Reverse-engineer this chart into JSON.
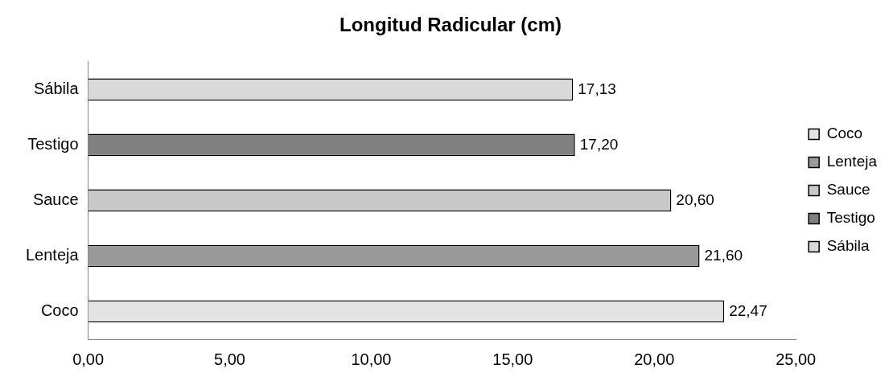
{
  "chart_data": {
    "type": "bar",
    "orientation": "horizontal",
    "title": "Longitud Radicular (cm)",
    "categories": [
      "Sábila",
      "Testigo",
      "Sauce",
      "Lenteja",
      "Coco"
    ],
    "series": [
      {
        "name": "Coco",
        "color": "#e3e3e3",
        "values": [
          null,
          null,
          null,
          null,
          22.47
        ],
        "value_labels": [
          null,
          null,
          null,
          null,
          "22,47"
        ]
      },
      {
        "name": "Lenteja",
        "color": "#999999",
        "values": [
          null,
          null,
          null,
          21.6,
          null
        ],
        "value_labels": [
          null,
          null,
          null,
          "21,60",
          null
        ]
      },
      {
        "name": "Sauce",
        "color": "#c8c8c8",
        "values": [
          null,
          null,
          20.6,
          null,
          null
        ],
        "value_labels": [
          null,
          null,
          "20,60",
          null,
          null
        ]
      },
      {
        "name": "Testigo",
        "color": "#808080",
        "values": [
          null,
          17.2,
          null,
          null,
          null
        ],
        "value_labels": [
          null,
          "17,20",
          null,
          null,
          null
        ]
      },
      {
        "name": "Sábila",
        "color": "#d9d9d9",
        "values": [
          17.13,
          null,
          null,
          null,
          null
        ],
        "value_labels": [
          "17,13",
          null,
          null,
          null,
          null
        ]
      }
    ],
    "xlim": [
      0,
      25
    ],
    "xticks": [
      {
        "value": 0,
        "label": "0,00"
      },
      {
        "value": 5,
        "label": "5,00"
      },
      {
        "value": 10,
        "label": "10,00"
      },
      {
        "value": 15,
        "label": "15,00"
      },
      {
        "value": 20,
        "label": "20,00"
      },
      {
        "value": 25,
        "label": "25,00"
      }
    ],
    "grid": false,
    "legend": "right"
  }
}
